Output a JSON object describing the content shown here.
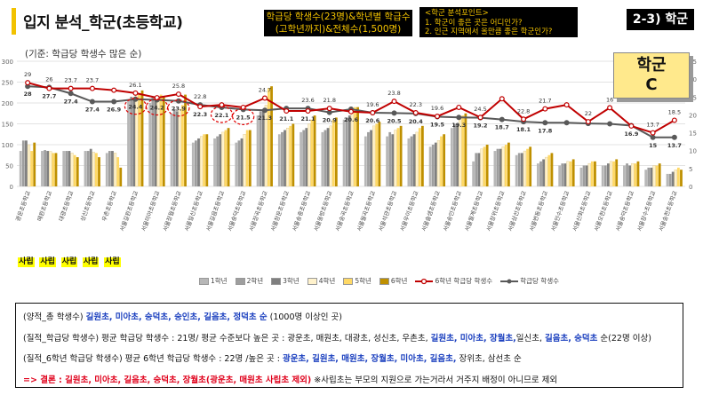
{
  "title": "입지 분석_학군(초등학교)",
  "box1": {
    "line1": "학급당 학생수(23명)&학년별 학급수",
    "line2": "(고학년까지)&전체수(1,500명)"
  },
  "box2": {
    "head": "<학군 분석포인트>",
    "p1": "1.  학군이 좋은 곳은 어디인가?",
    "p2": "2.  인근 지역에서 올만큼 좋은 학군인가?"
  },
  "section_tag": "2-3) 학군",
  "callout": {
    "line1": "학군",
    "line2": "C"
  },
  "note": "(기준: 학급당 학생수 많은 순)",
  "private_tag": "사립",
  "legend": [
    "1학년",
    "2학년",
    "3학년",
    "4학년",
    "5학년",
    "6학년",
    "6학년 학급당 학생수",
    "학급당 학생수"
  ],
  "colors": {
    "g1": "#b7b7b7",
    "g2": "#9e9e9e",
    "g3": "#7f7f7f",
    "g4": "#fff2cc",
    "g5": "#ffd966",
    "g6": "#bf9000",
    "red": "#c00000",
    "line2": "#595959"
  },
  "chart_data": {
    "type": "bar",
    "categories": [
      "광운초등학교",
      "매원초등학교",
      "대광초등학교",
      "성신초등학교",
      "우촌초등학교",
      "서울길원초등학교",
      "서울미아초등학교",
      "서울장월초등학교",
      "서울일신초등학교",
      "서울길음초등학교",
      "서울숭덕초등학교",
      "서울장곡초등학교",
      "서울창문초등학교",
      "서울송중초등학교",
      "서울동방초등학교",
      "서울숭곡초등학교",
      "서울월곡초등학교",
      "서울석관초등학교",
      "서울우이초등학교",
      "서울솔샘초등학교",
      "서울숭인초등학교",
      "서울월계초등학교",
      "서울장위초등학교",
      "서울삼선초등학교",
      "서울번동초등학교",
      "서울인수초등학교",
      "서울신화초등학교",
      "서울오현초등학교",
      "서울숭덕초등학교",
      "서울장수초등학교",
      "서울송천초등학교"
    ],
    "series": [
      {
        "name": "1학년",
        "values": [
          85,
          85,
          85,
          85,
          80,
          205,
          200,
          175,
          105,
          115,
          105,
          170,
          125,
          130,
          130,
          160,
          120,
          120,
          115,
          95,
          140,
          60,
          85,
          75,
          55,
          50,
          45,
          50,
          50,
          40,
          30
        ]
      },
      {
        "name": "2학년",
        "values": [
          110,
          87,
          85,
          85,
          85,
          215,
          215,
          185,
          110,
          120,
          110,
          180,
          130,
          135,
          135,
          165,
          130,
          130,
          120,
          100,
          150,
          80,
          90,
          80,
          60,
          55,
          50,
          50,
          55,
          45,
          30
        ]
      },
      {
        "name": "3학년",
        "values": [
          110,
          85,
          85,
          90,
          85,
          210,
          205,
          180,
          115,
          125,
          115,
          185,
          135,
          140,
          140,
          170,
          135,
          125,
          125,
          105,
          150,
          80,
          90,
          80,
          65,
          55,
          50,
          55,
          50,
          45,
          35
        ]
      },
      {
        "name": "4학년",
        "values": [
          100,
          84,
          80,
          82,
          80,
          220,
          210,
          185,
          120,
          130,
          125,
          195,
          140,
          150,
          145,
          180,
          145,
          135,
          130,
          110,
          160,
          90,
          95,
          85,
          70,
          60,
          55,
          60,
          55,
          50,
          40
        ]
      },
      {
        "name": "5학년",
        "values": [
          85,
          80,
          75,
          80,
          70,
          220,
          220,
          195,
          125,
          135,
          135,
          235,
          145,
          160,
          160,
          190,
          150,
          140,
          140,
          120,
          170,
          95,
          100,
          90,
          75,
          60,
          60,
          60,
          55,
          50,
          45
        ]
      },
      {
        "name": "6학년",
        "values": [
          105,
          80,
          70,
          70,
          45,
          230,
          215,
          220,
          125,
          140,
          135,
          240,
          150,
          170,
          165,
          190,
          155,
          145,
          145,
          125,
          175,
          100,
          105,
          95,
          80,
          65,
          60,
          65,
          60,
          55,
          40
        ]
      },
      {
        "name": "6학년 학급당 학생수",
        "values": [
          29,
          27.4,
          27.4,
          27.4,
          26.9,
          26.1,
          24.8,
          25.8,
          22.3,
          22.8,
          22.1,
          24.7,
          21.1,
          21.1,
          21.8,
          20.9,
          20.6,
          23.8,
          20.6,
          19.6,
          22.1,
          19.3,
          24.5,
          18.8,
          21.7,
          22.8,
          18.1,
          22,
          16.9,
          15,
          18.5
        ]
      },
      {
        "name": "학급당 학생수",
        "values": [
          28,
          27.7,
          26,
          23.7,
          23.7,
          24.4,
          24.2,
          23.9,
          22.8,
          22.1,
          21.5,
          21.3,
          21.8,
          21.8,
          20.7,
          21.6,
          20.6,
          20.5,
          20.4,
          19.5,
          19.3,
          19.2,
          18.7,
          18.1,
          17.8,
          17.8,
          17.6,
          17.5,
          17,
          13.7,
          13.7
        ]
      }
    ],
    "ylim_left": [
      0,
      300
    ],
    "yticks_left": [
      0,
      50,
      100,
      150,
      200,
      250,
      300
    ],
    "ylim_right": [
      0,
      35
    ],
    "yticks_right": [
      0,
      5,
      10,
      15,
      20,
      25,
      30,
      35
    ],
    "label_top": [
      "29",
      "26",
      "23.7",
      "23.7",
      "",
      "26.1",
      "",
      "25.8",
      "22.8",
      "",
      "",
      "24.7",
      "",
      "23.6",
      "21.8",
      "",
      "19.6",
      "23.8",
      "22.3",
      "19.6",
      "",
      "24.5",
      "",
      "22.8",
      "21.7",
      "",
      "22",
      "16",
      "",
      "13.7",
      "18.5"
    ],
    "label_mid": [
      "28",
      "27.7",
      "27.4",
      "27.4",
      "26.9",
      "24.4",
      "24.2",
      "23.9",
      "22.3",
      "22.1",
      "21.5",
      "21.3",
      "21.1",
      "21.1",
      "20.9",
      "20.6",
      "20.6",
      "20.5",
      "20.4",
      "19.5",
      "19.3",
      "19.2",
      "18.7",
      "18.1",
      "17.8",
      "",
      "",
      "",
      "16.9",
      "15",
      "13.7"
    ],
    "circled": [
      5,
      6,
      7,
      9,
      10
    ],
    "private_idx": [
      0,
      1,
      2,
      3,
      4
    ]
  },
  "info": {
    "l1_pre": "(양적_총 학생수)",
    "l1_schools": "길원초, 미아초, 숭덕초, 숭인초, 길음초, 정덕초 순",
    "l1_post": "(1000명 이상인 곳)",
    "l2_pre": "(질적_학급당 학생수) 평균 학급당 학생수 : 21명/ 평균 수준보다 높은 곳 : 광운초, 매원초, 대광초, 성신초, 우촌초,",
    "l2_schools": "길원초, 미아초, 장월초,",
    "l2_post": "일신초,",
    "l2_schools2": "길음초, 숭덕초",
    "l2_end": "순(22명 이상)",
    "l3_pre": "(질적_6학년 학급당 학생수) 평균 6학년 학급당 학생수 : 22명 /높은 곳 :",
    "l3_schools": "광운초, 길원초, 매원초, 장월초, 미아초, 길음초,",
    "l3_post": "장위초, 삼선초 순",
    "l4_arrow": "=>  결론 : 길원초, 미아초, 길음초, 숭덕초, 장월초(광운초, 매원초 사립초 제외)",
    "l4_note": "※사립초는 부모의 지원으로 가는거라서 거주지 배정이 아니므로 제외"
  }
}
